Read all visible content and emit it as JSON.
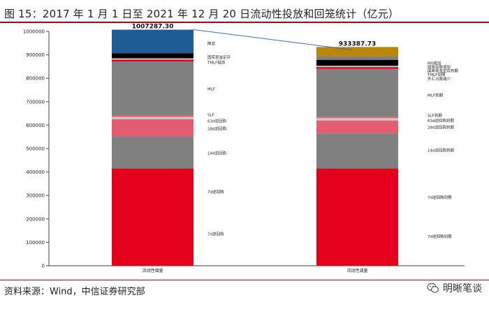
{
  "header": {
    "title": "图 15：2017 年 1 月 1 日至 2021 年 12 月 20 日流动性投放和回笼统计（亿元）"
  },
  "footer": {
    "source": "资料来源：Wind，中信证券研究部",
    "watermark": "明晰笔谈"
  },
  "icons": {
    "watermark": "wechat-icon"
  },
  "chart_data": {
    "type": "bar",
    "stacked": true,
    "categories": [
      "流动性增量",
      "流动性减量"
    ],
    "ylim": [
      0,
      1000000
    ],
    "yticks": [
      0,
      100000,
      200000,
      300000,
      400000,
      500000,
      600000,
      700000,
      800000,
      900000,
      1000000
    ],
    "grid": false,
    "bars": [
      {
        "category": "流动性增量",
        "total_label": "1007287.30",
        "total": 1007287.3,
        "segments": [
          {
            "label": "7d逆回购",
            "value": 415000,
            "color": "#e4001c"
          },
          {
            "label": "14d逆回购",
            "value": 137000,
            "color": "#808080"
          },
          {
            "label": "28d逆回购",
            "value": 73000,
            "color": "#e45c70"
          },
          {
            "label": "63d逆回购",
            "value": 10000,
            "color": "#c9c9c9"
          },
          {
            "label": "SLF",
            "value": 6000,
            "color": "#e85d6a"
          },
          {
            "label": "MLF",
            "value": 231000,
            "color": "#808080"
          },
          {
            "label": "TMLF投放",
            "value": 8000,
            "color": "#e4001c"
          },
          {
            "label": "国库现金定存",
            "value": 5000,
            "color": "#d9d9d9"
          },
          {
            "label": "",
            "value": 22000,
            "color": "#000000"
          },
          {
            "label": "降准",
            "value": 100287.3,
            "color": "#1f5c96"
          }
        ],
        "labels": [
          {
            "text": "7d逆回购",
            "value": 135000
          },
          {
            "text": "7d逆回购",
            "value": 315000
          },
          {
            "text": "14d逆回购",
            "value": 480000
          },
          {
            "text": "28d逆回购",
            "value": 585000
          },
          {
            "text": "63d逆回购",
            "value": 618000
          },
          {
            "text": "SLF",
            "value": 645000
          },
          {
            "text": "MLF",
            "value": 755000
          },
          {
            "text": "TMLF投放",
            "value": 868000
          },
          {
            "text": "国库现金定存",
            "value": 890000
          },
          {
            "text": "降准",
            "value": 948000
          }
        ]
      },
      {
        "category": "流动性减量",
        "total_label": "933387.73",
        "total": 933387.73,
        "segments": [
          {
            "label": "7d逆回购到期",
            "value": 415000,
            "color": "#e4001c"
          },
          {
            "label": "14d逆回购到期",
            "value": 150000,
            "color": "#808080"
          },
          {
            "label": "28d逆回购到期",
            "value": 55000,
            "color": "#e45c70"
          },
          {
            "label": "63d逆回购到期",
            "value": 10000,
            "color": "#c9c9c9"
          },
          {
            "label": "SLF到期",
            "value": 6000,
            "color": "#e85d6a"
          },
          {
            "label": "MLF到期",
            "value": 204000,
            "color": "#808080"
          },
          {
            "label": "TMLF到期",
            "value": 8000,
            "color": "#e4001c"
          },
          {
            "label": "国库现金定存到期",
            "value": 5000,
            "color": "#d9d9d9"
          },
          {
            "label": "外汇占款减少",
            "value": 25000,
            "color": "#000000"
          },
          {
            "label": "财政存款增加",
            "value": 15000,
            "color": "#7f7f7f"
          },
          {
            "label": "M0增加",
            "value": 40387.73,
            "color": "#b8860b"
          }
        ],
        "labels": [
          {
            "text": "7d逆回购到期",
            "value": 125000
          },
          {
            "text": "7d逆回购到期",
            "value": 292000
          },
          {
            "text": "14d逆回购到期",
            "value": 492000
          },
          {
            "text": "28d逆回购到期",
            "value": 591000
          },
          {
            "text": "63d逆回购到期",
            "value": 619000
          },
          {
            "text": "SLF到期",
            "value": 642000
          },
          {
            "text": "MLF到期",
            "value": 727000
          },
          {
            "text": "外汇占款减少",
            "value": 798000
          },
          {
            "text": "TMLF到期",
            "value": 815000
          },
          {
            "text": "国库现金定存到期",
            "value": 832000
          },
          {
            "text": "财政存款增加",
            "value": 848000
          },
          {
            "text": "M0增加",
            "value": 864000
          }
        ]
      }
    ],
    "connector": {
      "from": "流动性增量",
      "to": "流动性减量"
    }
  }
}
